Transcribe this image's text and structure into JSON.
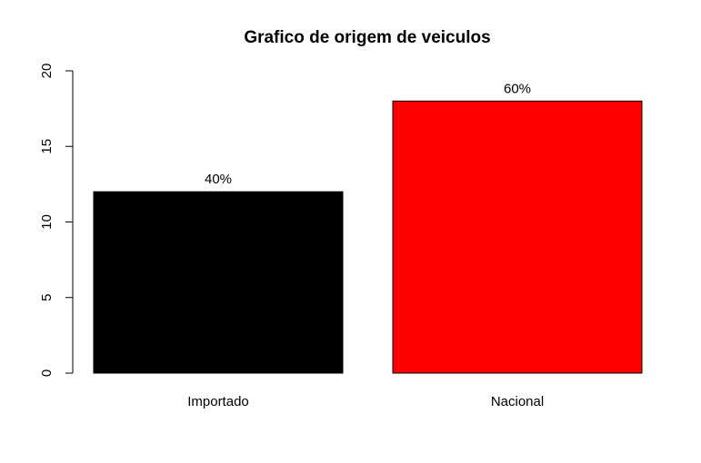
{
  "chart_data": {
    "type": "bar",
    "title": "Grafico de origem de veiculos",
    "xlabel": "",
    "ylabel": "",
    "categories": [
      "Importado",
      "Nacional"
    ],
    "values": [
      12,
      18
    ],
    "data_labels": [
      "40%",
      "60%"
    ],
    "colors": [
      "#000000",
      "#ff0000"
    ],
    "ylim": [
      0,
      20
    ],
    "yticks": [
      0,
      5,
      10,
      15,
      20
    ],
    "ytick_labels": [
      "0",
      "5",
      "10",
      "15",
      "20"
    ],
    "grid": false,
    "legend": "none"
  }
}
